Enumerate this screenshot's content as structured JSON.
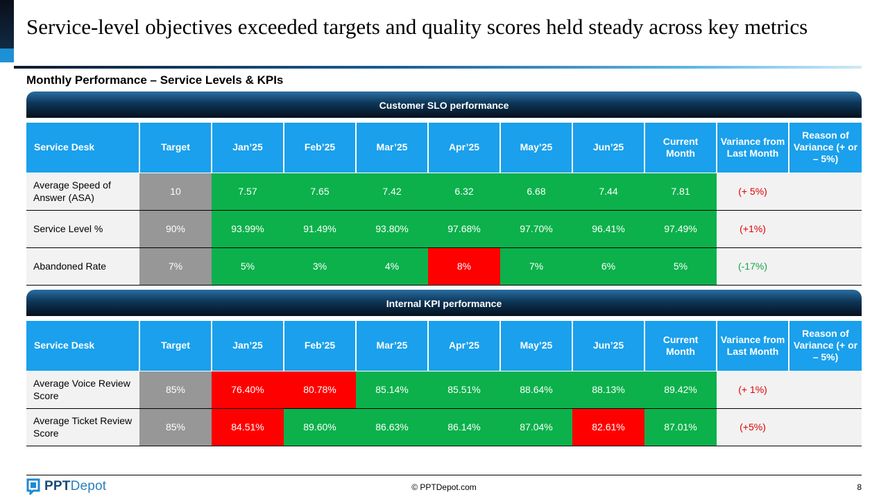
{
  "title": "Service-level objectives exceeded targets and quality scores held steady across key metrics",
  "subtitle": "Monthly Performance – Service Levels & KPIs",
  "headers": [
    "Service Desk",
    "Target",
    "Jan’25",
    "Feb’25",
    "Mar’25",
    "Apr’25",
    "May’25",
    "Jun’25",
    "Current Month",
    "Variance from Last Month",
    "Reason of Variance (+ or – 5%)"
  ],
  "colors": {
    "green": "#0cb14b",
    "red": "#ff0000",
    "target_gray": "#979797",
    "header_blue": "#1aa0ec"
  },
  "sections": [
    {
      "title": "Customer SLO performance",
      "rows": [
        {
          "name": "Average Speed of Answer (ASA)",
          "target": "10",
          "months": [
            "7.57",
            "7.65",
            "7.42",
            "6.32",
            "6.68",
            "7.44"
          ],
          "current": "7.81",
          "variance": "(+ 5%)",
          "reason": ""
        },
        {
          "name": "Service Level %",
          "target": "90%",
          "months": [
            "93.99%",
            "91.49%",
            "93.80%",
            "97.68%",
            "97.70%",
            "96.41%"
          ],
          "current": "97.49%",
          "variance": "(+1%)",
          "reason": ""
        },
        {
          "name": "Abandoned Rate",
          "target": "7%",
          "months": [
            "5%",
            "3%",
            "4%",
            "8%",
            "7%",
            "6%"
          ],
          "current": "5%",
          "variance": "(-17%)",
          "reason": ""
        }
      ]
    },
    {
      "title": "Internal KPI performance",
      "rows": [
        {
          "name": "Average Voice Review Score",
          "target": "85%",
          "months": [
            "76.40%",
            "80.78%",
            "85.14%",
            "85.51%",
            "88.64%",
            "88.13%"
          ],
          "current": "89.42%",
          "variance": "(+ 1%)",
          "reason": ""
        },
        {
          "name": "Average Ticket Review Score",
          "target": "85%",
          "months": [
            "84.51%",
            "89.60%",
            "86.63%",
            "86.14%",
            "87.04%",
            "82.61%"
          ],
          "current": "87.01%",
          "variance": "(+5%)",
          "reason": ""
        }
      ]
    }
  ],
  "footer": {
    "logo_bold": "PPT",
    "logo_light": "Depot",
    "copyright": "© PPTDepot.com",
    "page_number": "8"
  }
}
